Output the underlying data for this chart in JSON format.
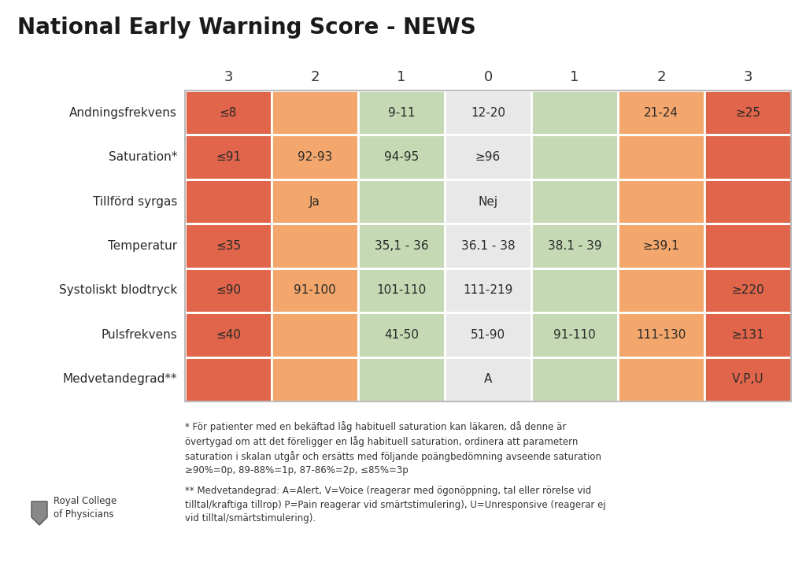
{
  "title": "National Early Warning Score - NEWS",
  "score_headers": [
    "3",
    "2",
    "1",
    "0",
    "1",
    "2",
    "3"
  ],
  "row_labels": [
    "Andningsfrekvens",
    "Saturation*",
    "Tillförd syrgas",
    "Temperatur",
    "Systoliskt blodtryck",
    "Pulsfrekvens",
    "Medvetandegrad**"
  ],
  "cell_data": [
    [
      "≤8",
      "",
      "9-11",
      "12-20",
      "",
      "21-24",
      "≥25"
    ],
    [
      "≤91",
      "92-93",
      "94-95",
      "≥96",
      "",
      "",
      ""
    ],
    [
      "",
      "Ja",
      "",
      "Nej",
      "",
      "",
      ""
    ],
    [
      "≤35",
      "",
      "35,1 - 36",
      "36.1 - 38",
      "38.1 - 39",
      "≥39,1",
      ""
    ],
    [
      "≤90",
      "91-100",
      "101-110",
      "111-219",
      "",
      "",
      "≥220"
    ],
    [
      "≤40",
      "",
      "41-50",
      "51-90",
      "91-110",
      "111-130",
      "≥131"
    ],
    [
      "",
      "",
      "",
      "A",
      "",
      "",
      "V,P,U"
    ]
  ],
  "col_colors": [
    "#e0654a",
    "#f4a76c",
    "#c5dab4",
    "#e8e8e8",
    "#c5dab4",
    "#f4a76c",
    "#e0654a"
  ],
  "footnote1": "* För patienter med en bekäftad låg habituell saturation kan läkaren, då denne är\növertygad om att det föreligger en låg habituell saturation, ordinera att parametern\nsaturation i skalan utgår och ersätts med följande poängbedömning avseende saturation\n≥90%=0p, 89-88%=1p, 87-86%=2p, ≤85%=3p",
  "footnote2": "** Medvetandegrad: A=Alert, V=Voice (reagerar med ögonöppning, tal eller rörelse vid\ntilltal/kraftiga tillrop) P=Pain reagerar vid smärtstimulering), U=Unresponsive (reagerar ej\nvid tilltal/smärtstimulering).",
  "logo_text": "Royal College\nof Physicians",
  "title_fontsize": 20,
  "header_fontsize": 13,
  "label_fontsize": 11,
  "cell_fontsize": 11,
  "footnote_fontsize": 8.5
}
